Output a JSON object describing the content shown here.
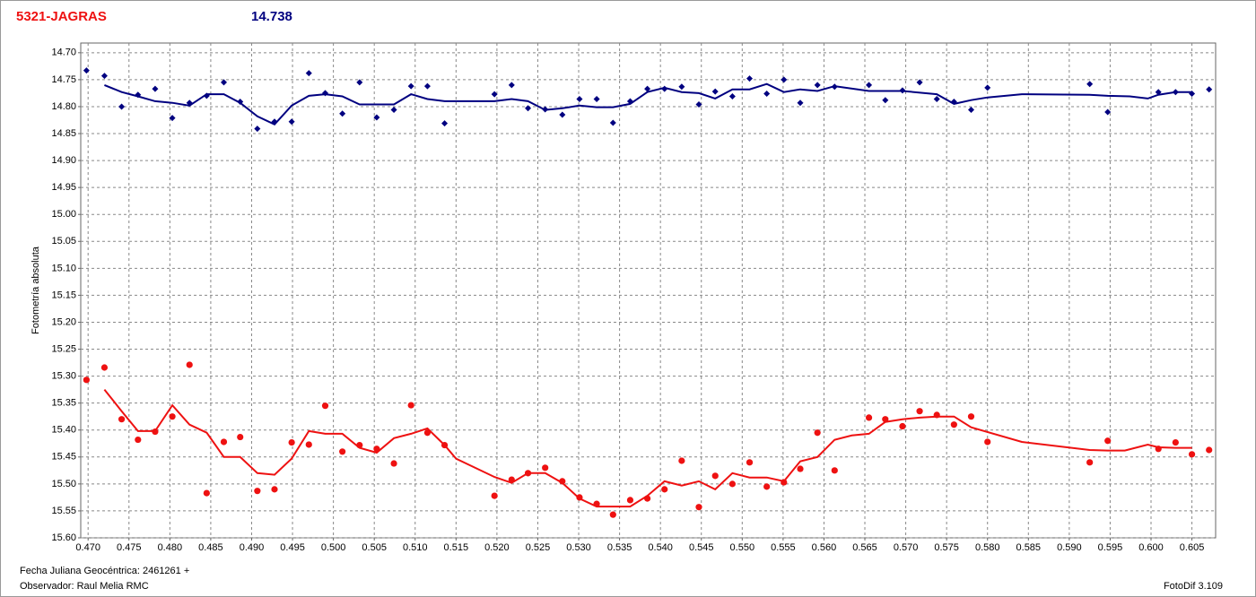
{
  "chart_data": {
    "type": "scatter",
    "title": "5321-JAGRAS",
    "subtitle": "14.738",
    "ylabel": "Fotometría absoluta",
    "xlabel": "Fecha Juliana Geocéntrica: 2461261 +",
    "observer": "Observador: Raul Melia RMC",
    "software": "FotoDif 3.109",
    "grid": true,
    "xlim": [
      0.4691,
      0.6079
    ],
    "ylim": [
      15.6,
      14.682
    ],
    "xticks": [
      {
        "value": 0.47,
        "label": "0.470"
      },
      0.475,
      {
        "value": 0.48,
        "label": "0.480"
      },
      0.485,
      {
        "value": 0.49,
        "label": "0.490"
      },
      0.495,
      {
        "value": 0.5,
        "label": "0.500"
      },
      0.505,
      {
        "value": 0.51,
        "label": "0.510"
      },
      0.515,
      {
        "value": 0.52,
        "label": "0.520"
      },
      0.525,
      {
        "value": 0.53,
        "label": "0.530"
      },
      0.535,
      {
        "value": 0.54,
        "label": "0.540"
      },
      0.545,
      {
        "value": 0.55,
        "label": "0.550"
      },
      0.555,
      {
        "value": 0.56,
        "label": "0.560"
      },
      0.565,
      {
        "value": 0.57,
        "label": "0.570"
      },
      0.575,
      {
        "value": 0.58,
        "label": "0.580"
      },
      0.585,
      {
        "value": 0.59,
        "label": "0.590"
      },
      0.595,
      {
        "value": 0.6,
        "label": "0.600"
      },
      0.605
    ],
    "yticks": [
      {
        "value": 14.7,
        "label": "14.70"
      },
      14.75,
      {
        "value": 14.8,
        "label": "14.80"
      },
      14.85,
      {
        "value": 14.9,
        "label": "14.90"
      },
      14.95,
      {
        "value": 15.0,
        "label": "15.00"
      },
      15.05,
      {
        "value": 15.1,
        "label": "15.10"
      },
      15.15,
      {
        "value": 15.2,
        "label": "15.20"
      },
      15.25,
      {
        "value": 15.3,
        "label": "15.30"
      },
      15.35,
      {
        "value": 15.4,
        "label": "15.40"
      },
      15.45,
      {
        "value": 15.5,
        "label": "15.50"
      },
      15.55,
      {
        "value": 15.6,
        "label": "15.60"
      }
    ],
    "series": [
      {
        "style": "diamond",
        "color": "#000080",
        "x": [
          0.4698,
          0.472,
          0.4741,
          0.4761,
          0.4782,
          0.4803,
          0.4824,
          0.4845,
          0.4866,
          0.4886,
          0.4907,
          0.4928,
          0.4949,
          0.497,
          0.499,
          0.5011,
          0.5032,
          0.5053,
          0.5074,
          0.5095,
          0.5115,
          0.5136,
          0.5197,
          0.5218,
          0.5238,
          0.5259,
          0.528,
          0.5301,
          0.5322,
          0.5342,
          0.5363,
          0.5384,
          0.5405,
          0.5426,
          0.5447,
          0.5467,
          0.5488,
          0.5509,
          0.553,
          0.5551,
          0.5571,
          0.5592,
          0.5613,
          0.5655,
          0.5675,
          0.5696,
          0.5717,
          0.5738,
          0.5759,
          0.578,
          0.58,
          0.5925,
          0.5947,
          0.6009,
          0.603,
          0.605,
          0.6071
        ],
        "values": [
          14.733,
          14.743,
          14.8,
          14.778,
          14.767,
          14.821,
          14.793,
          14.78,
          14.755,
          14.791,
          14.841,
          14.828,
          14.828,
          14.738,
          14.775,
          14.813,
          14.755,
          14.82,
          14.806,
          14.762,
          14.762,
          14.831,
          14.777,
          14.76,
          14.803,
          14.805,
          14.815,
          14.786,
          14.786,
          14.83,
          14.79,
          14.767,
          14.767,
          14.763,
          14.796,
          14.772,
          14.781,
          14.748,
          14.776,
          14.75,
          14.793,
          14.76,
          14.763,
          14.76,
          14.788,
          14.77,
          14.755,
          14.786,
          14.791,
          14.806,
          14.765,
          14.758,
          14.81,
          14.773,
          14.773,
          14.776,
          14.768
        ]
      },
      {
        "style": "line",
        "color": "#000080",
        "x": [
          0.472,
          0.4741,
          0.4761,
          0.4782,
          0.4803,
          0.4824,
          0.4845,
          0.4866,
          0.4886,
          0.4907,
          0.4928,
          0.4949,
          0.497,
          0.499,
          0.5011,
          0.5032,
          0.5053,
          0.5074,
          0.5095,
          0.5115,
          0.5136,
          0.5197,
          0.5218,
          0.5238,
          0.5259,
          0.528,
          0.5301,
          0.5322,
          0.5342,
          0.5363,
          0.5384,
          0.5405,
          0.5426,
          0.5447,
          0.5467,
          0.5488,
          0.5509,
          0.553,
          0.5551,
          0.5571,
          0.5592,
          0.5613,
          0.5655,
          0.5696,
          0.5738,
          0.5759,
          0.578,
          0.58,
          0.5842,
          0.5925,
          0.5947,
          0.5974,
          0.5996,
          0.6009,
          0.603,
          0.605
        ],
        "values": [
          14.76,
          14.773,
          14.781,
          14.79,
          14.793,
          14.798,
          14.777,
          14.777,
          14.793,
          14.818,
          14.833,
          14.798,
          14.78,
          14.777,
          14.781,
          14.796,
          14.796,
          14.796,
          14.777,
          14.786,
          14.79,
          14.79,
          14.786,
          14.79,
          14.806,
          14.803,
          14.798,
          14.801,
          14.801,
          14.795,
          14.773,
          14.765,
          14.773,
          14.775,
          14.785,
          14.768,
          14.768,
          14.758,
          14.773,
          14.768,
          14.771,
          14.762,
          14.771,
          14.771,
          14.777,
          14.795,
          14.788,
          14.783,
          14.777,
          14.778,
          14.78,
          14.781,
          14.785,
          14.778,
          14.773,
          14.773
        ]
      },
      {
        "style": "circle",
        "color": "#ee1111",
        "x": [
          0.4698,
          0.472,
          0.4741,
          0.4761,
          0.4782,
          0.4803,
          0.4824,
          0.4845,
          0.4866,
          0.4886,
          0.4907,
          0.4928,
          0.4949,
          0.497,
          0.499,
          0.5011,
          0.5032,
          0.5053,
          0.5074,
          0.5095,
          0.5115,
          0.5136,
          0.5197,
          0.5218,
          0.5238,
          0.5259,
          0.528,
          0.5301,
          0.5322,
          0.5342,
          0.5363,
          0.5384,
          0.5405,
          0.5426,
          0.5447,
          0.5467,
          0.5488,
          0.5509,
          0.553,
          0.5551,
          0.5571,
          0.5592,
          0.5613,
          0.5655,
          0.5675,
          0.5696,
          0.5717,
          0.5738,
          0.5759,
          0.578,
          0.58,
          0.5925,
          0.5947,
          0.6009,
          0.603,
          0.605,
          0.6071
        ],
        "values": [
          15.307,
          15.284,
          15.38,
          15.418,
          15.403,
          15.375,
          15.279,
          15.517,
          15.422,
          15.413,
          15.513,
          15.51,
          15.423,
          15.427,
          15.355,
          15.44,
          15.428,
          15.435,
          15.462,
          15.354,
          15.405,
          15.428,
          15.522,
          15.492,
          15.48,
          15.47,
          15.495,
          15.525,
          15.537,
          15.557,
          15.53,
          15.527,
          15.51,
          15.457,
          15.543,
          15.485,
          15.5,
          15.46,
          15.505,
          15.497,
          15.472,
          15.405,
          15.475,
          15.377,
          15.38,
          15.393,
          15.365,
          15.372,
          15.39,
          15.375,
          15.422,
          15.46,
          15.42,
          15.435,
          15.423,
          15.445,
          15.437
        ]
      },
      {
        "style": "line",
        "color": "#ee1111",
        "x": [
          0.472,
          0.4741,
          0.4761,
          0.4782,
          0.4803,
          0.4824,
          0.4845,
          0.4866,
          0.4886,
          0.4907,
          0.4928,
          0.4949,
          0.497,
          0.499,
          0.5011,
          0.5032,
          0.5053,
          0.5074,
          0.5095,
          0.5115,
          0.5136,
          0.515,
          0.5197,
          0.5218,
          0.5238,
          0.5259,
          0.528,
          0.5301,
          0.5322,
          0.5342,
          0.5363,
          0.5384,
          0.5405,
          0.5426,
          0.5447,
          0.5467,
          0.5488,
          0.5509,
          0.553,
          0.5551,
          0.5571,
          0.5592,
          0.5613,
          0.5634,
          0.5655,
          0.5675,
          0.5696,
          0.5717,
          0.5738,
          0.5759,
          0.578,
          0.5842,
          0.5925,
          0.5947,
          0.5968,
          0.5996,
          0.6009,
          0.603,
          0.605
        ],
        "values": [
          15.325,
          15.365,
          15.402,
          15.402,
          15.354,
          15.39,
          15.405,
          15.45,
          15.45,
          15.48,
          15.483,
          15.453,
          15.402,
          15.407,
          15.407,
          15.433,
          15.442,
          15.415,
          15.407,
          15.397,
          15.428,
          15.453,
          15.487,
          15.498,
          15.48,
          15.48,
          15.498,
          15.527,
          15.542,
          15.542,
          15.542,
          15.522,
          15.495,
          15.503,
          15.495,
          15.51,
          15.48,
          15.488,
          15.488,
          15.495,
          15.458,
          15.45,
          15.418,
          15.41,
          15.407,
          15.385,
          15.38,
          15.377,
          15.375,
          15.375,
          15.395,
          15.422,
          15.437,
          15.438,
          15.438,
          15.427,
          15.432,
          15.433,
          15.433
        ]
      }
    ]
  }
}
